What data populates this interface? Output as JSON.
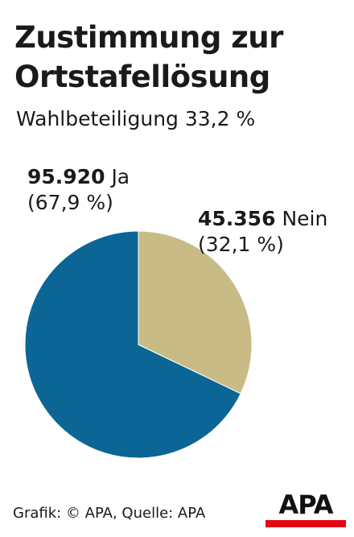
{
  "title": "Zustimmung zur Ortstafellösung",
  "subtitle": "Wahlbeteiligung 33,2 %",
  "chart_data": {
    "type": "pie",
    "title": "Zustimmung zur Ortstafellösung",
    "subtitle": "Wahlbeteiligung 33,2 %",
    "slices": [
      {
        "value_text": "95.920",
        "label": "Ja",
        "share_text": "(67,9 %)",
        "value": 95920,
        "percent": 67.9,
        "color": "#0b6696"
      },
      {
        "value_text": "45.356",
        "label": "Nein",
        "share_text": "(32,1 %)",
        "value": 45356,
        "percent": 32.1,
        "color": "#c8bb86"
      }
    ]
  },
  "footer": "Grafik: © APA, Quelle: APA",
  "logo": {
    "text": "APA",
    "bar_color": "#e30613"
  }
}
